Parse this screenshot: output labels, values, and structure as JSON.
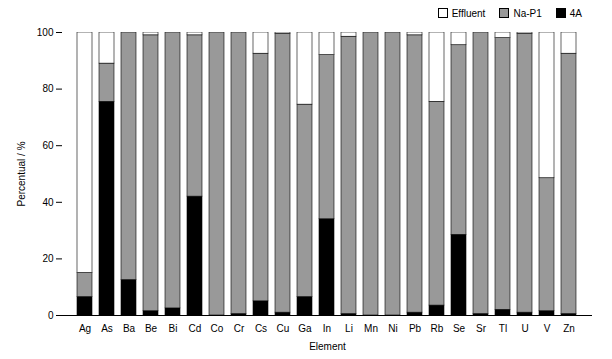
{
  "chart_data": {
    "type": "bar",
    "stacked": true,
    "legend": "top-right",
    "grid": false,
    "x_label": "Element",
    "y_label": "Percentual / %",
    "categories": [
      "Ag",
      "As",
      "Ba",
      "Be",
      "Bi",
      "Cd",
      "Co",
      "Cr",
      "Cs",
      "Cu",
      "Ga",
      "In",
      "Li",
      "Mn",
      "Ni",
      "Pb",
      "Rb",
      "Se",
      "Sr",
      "Tl",
      "U",
      "V",
      "Zn"
    ],
    "ylim": [
      0,
      100
    ],
    "yticks": [
      0,
      20,
      40,
      60,
      80,
      100
    ],
    "series": [
      {
        "name": "4A",
        "color": "#000000",
        "values": [
          6.5,
          75.5,
          12.5,
          1.5,
          2.5,
          42,
          0,
          0.5,
          5,
          1,
          6.5,
          34,
          0.5,
          0,
          0,
          1,
          3.5,
          28.5,
          0.5,
          2,
          1,
          1.5,
          0.5
        ]
      },
      {
        "name": "Na-P1",
        "color": "#999999",
        "values": [
          8.5,
          13.5,
          87.5,
          97.5,
          97.5,
          57,
          100,
          99.5,
          87.5,
          98.5,
          68,
          58,
          98,
          100,
          100,
          98,
          72,
          67,
          99.5,
          96,
          98.5,
          47,
          92
        ]
      },
      {
        "name": "Effluent",
        "color": "#ffffff",
        "values": [
          85,
          11,
          0,
          1,
          0,
          1,
          0,
          0,
          7.5,
          0.5,
          25.5,
          8,
          1.5,
          0,
          0,
          1,
          24.5,
          4.5,
          0,
          2,
          0.5,
          51.5,
          7.5
        ]
      }
    ]
  }
}
